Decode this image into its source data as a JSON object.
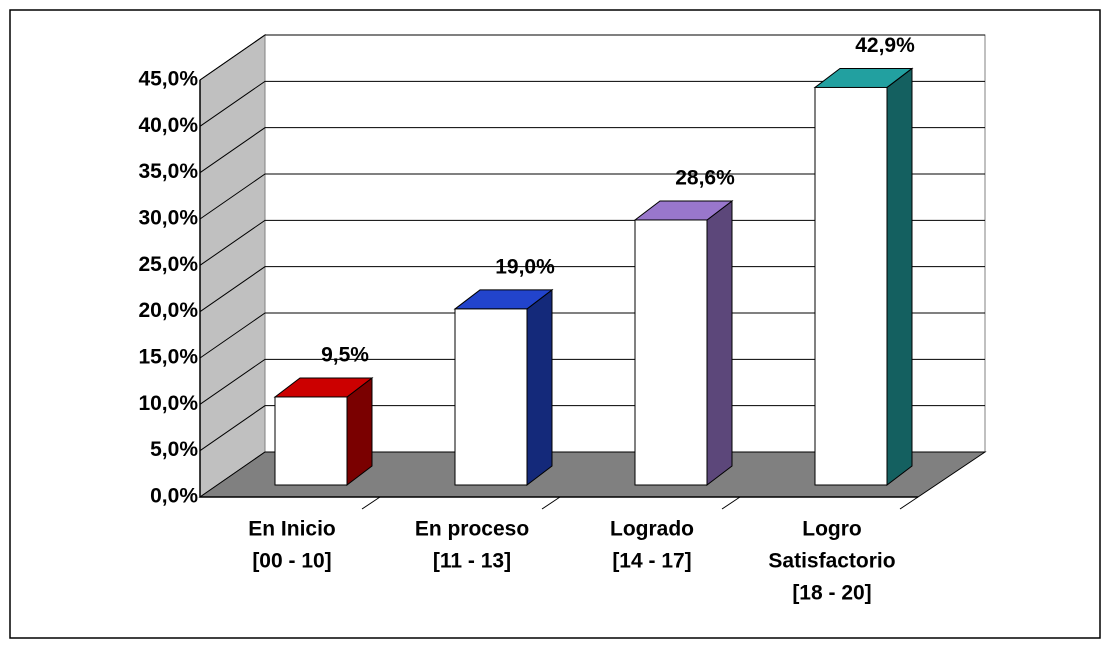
{
  "chart_data": {
    "type": "bar3d",
    "categories": [
      [
        "En Inicio",
        "[00 - 10]"
      ],
      [
        "En proceso",
        "[11 - 13]"
      ],
      [
        "Logrado",
        "[14 - 17]"
      ],
      [
        "Logro",
        "Satisfactorio",
        "[18 - 20]"
      ]
    ],
    "values": [
      9.5,
      19.0,
      28.6,
      42.9
    ],
    "value_labels": [
      "9,5%",
      "19,0%",
      "28,6%",
      "42,9%"
    ],
    "colors": [
      "#cc0000",
      "#2244cc",
      "#9977cc",
      "#22a0a0"
    ],
    "ylim": [
      0,
      45
    ],
    "yticks": [
      {
        "value": 0,
        "label": "0,0%"
      },
      {
        "value": 5,
        "label": "5,0%"
      },
      {
        "value": 10,
        "label": "10,0%"
      },
      {
        "value": 15,
        "label": "15,0%"
      },
      {
        "value": 20,
        "label": "20,0%"
      },
      {
        "value": 25,
        "label": "25,0%"
      },
      {
        "value": 30,
        "label": "30,0%"
      },
      {
        "value": 35,
        "label": "35,0%"
      },
      {
        "value": 40,
        "label": "40,0%"
      },
      {
        "value": 45,
        "label": "45,0%"
      }
    ],
    "grid": true
  }
}
